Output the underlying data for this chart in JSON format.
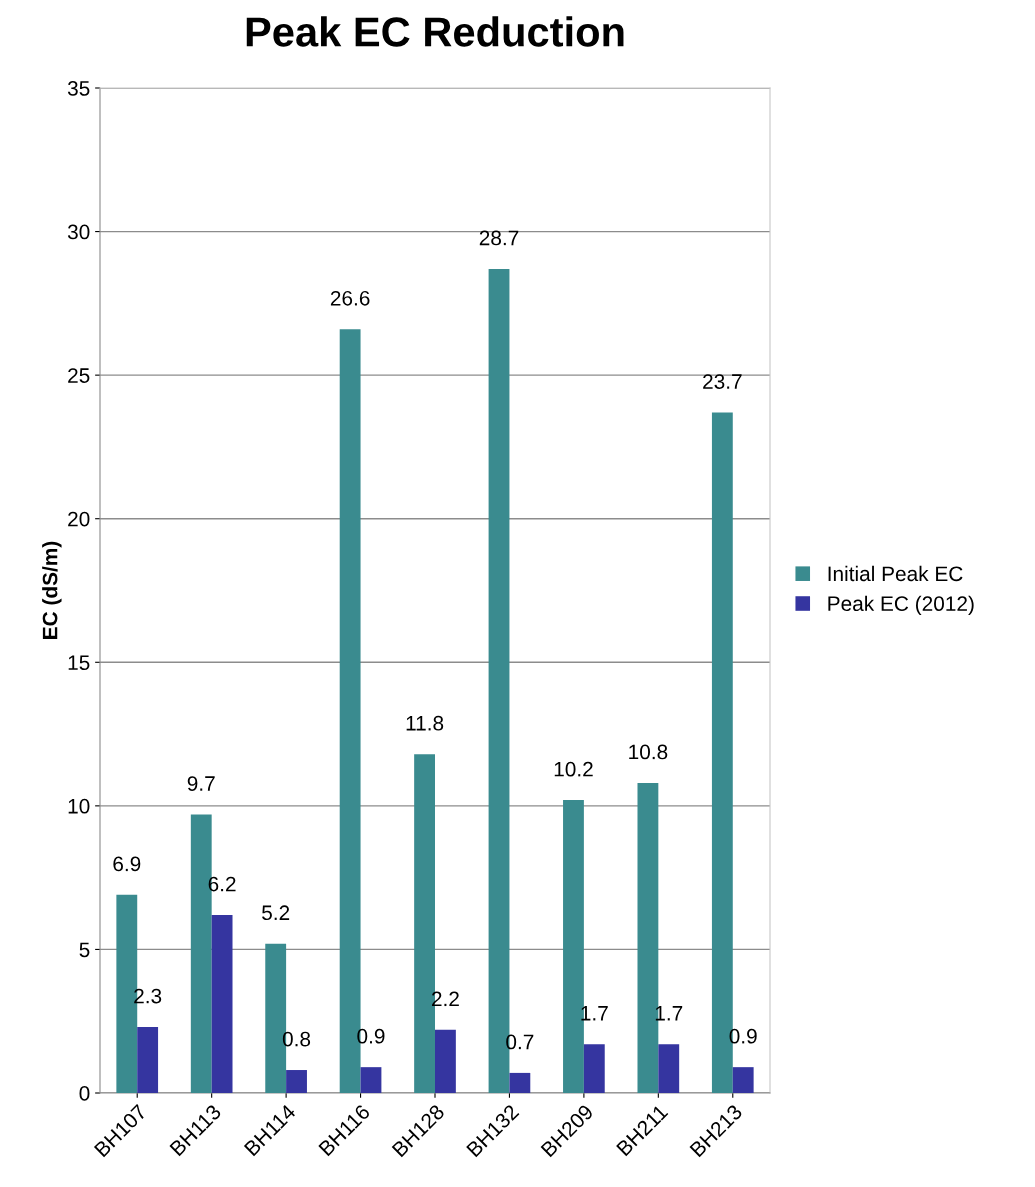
{
  "chart_data": {
    "type": "bar",
    "title": "Peak EC Reduction",
    "ylabel": "EC (dS/m)",
    "categories": [
      "BH107",
      "BH113",
      "BH114",
      "BH116",
      "BH128",
      "BH132",
      "BH209",
      "BH211",
      "BH213"
    ],
    "series": [
      {
        "name": "Initial Peak EC",
        "color": "#3a8b8f",
        "values": [
          6.9,
          9.7,
          5.2,
          26.6,
          11.8,
          28.7,
          10.2,
          10.8,
          23.7
        ]
      },
      {
        "name": "Peak EC (2012)",
        "color": "#3535a0",
        "values": [
          2.3,
          6.2,
          0.8,
          0.9,
          2.2,
          0.7,
          1.7,
          1.7,
          0.9
        ]
      }
    ],
    "ylim": [
      0,
      35
    ],
    "yticks": [
      0,
      5,
      10,
      15,
      20,
      25,
      30,
      35
    ],
    "grid": "y",
    "legend": "right",
    "data_labels": true
  }
}
